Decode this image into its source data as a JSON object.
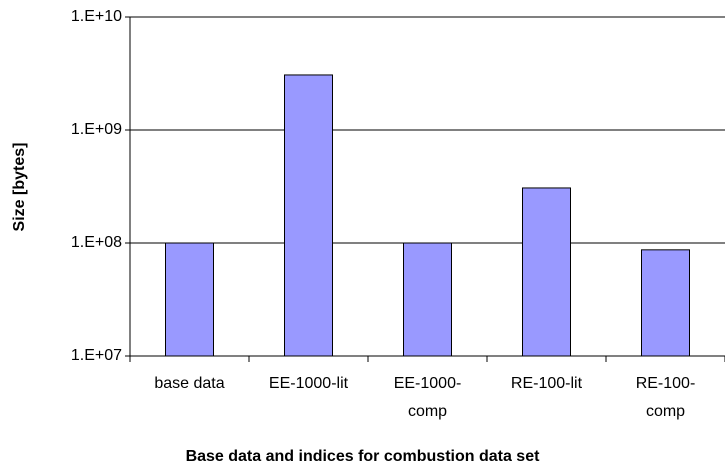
{
  "chart_data": {
    "type": "bar",
    "x_label": "Base data and indices for combustion data set",
    "y_label": "Size [bytes]",
    "categories": [
      "base data",
      "EE-1000-lit",
      "EE-1000-comp",
      "RE-100-lit",
      "RE-100-comp"
    ],
    "values": [
      100000000,
      3070000000,
      100000000,
      307000000,
      87000000
    ],
    "color": "#9999ff",
    "log_y": true,
    "grid": true,
    "ylim": [
      10000000,
      10000000000
    ],
    "yticks": [
      {
        "value": 10000000,
        "label": "1.E+07"
      },
      {
        "value": 100000000,
        "label": "1.E+08"
      },
      {
        "value": 1000000000,
        "label": "1.E+09"
      },
      {
        "value": 10000000000,
        "label": "1.E+10"
      }
    ]
  }
}
